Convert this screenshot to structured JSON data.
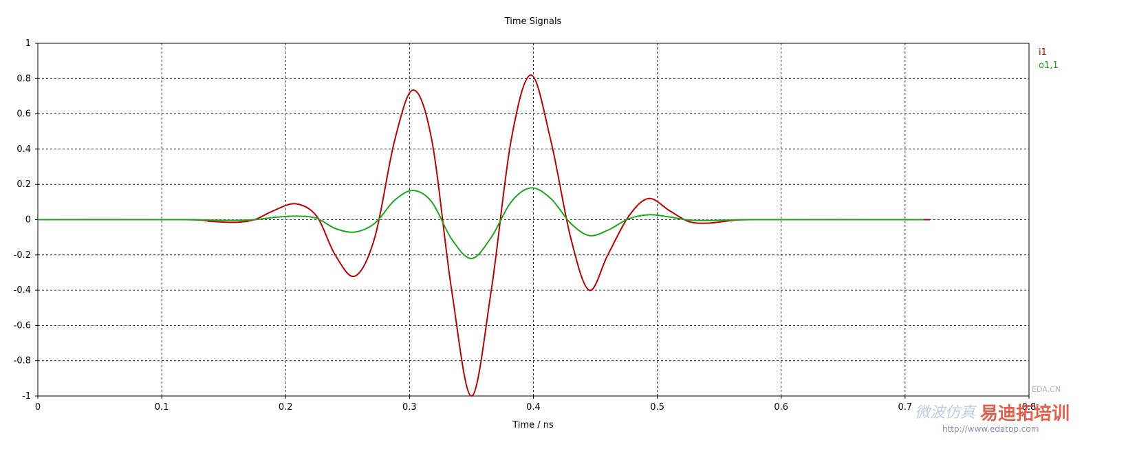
{
  "chart_data": {
    "type": "line",
    "title": "Time Signals",
    "xlabel": "Time / ns",
    "ylabel": "",
    "xlim": [
      0,
      0.8
    ],
    "ylim": [
      -1,
      1
    ],
    "x_ticks": [
      "0",
      "0.1",
      "0.2",
      "0.3",
      "0.4",
      "0.5",
      "0.6",
      "0.7",
      "0.8"
    ],
    "y_ticks": [
      "1",
      "0.8",
      "0.6",
      "0.4",
      "0.2",
      "0",
      "-0.2",
      "-0.4",
      "-0.6",
      "-0.8",
      "-1"
    ],
    "grid": true,
    "legend_position": "top-right",
    "series": [
      {
        "name": "i1",
        "color": "#c00000",
        "x": [
          0,
          0.12,
          0.14,
          0.16,
          0.175,
          0.19,
          0.208,
          0.225,
          0.24,
          0.256,
          0.272,
          0.288,
          0.303,
          0.318,
          0.334,
          0.35,
          0.366,
          0.382,
          0.398,
          0.414,
          0.43,
          0.445,
          0.46,
          0.477,
          0.493,
          0.51,
          0.525,
          0.54,
          0.56,
          0.575,
          0.72
        ],
        "y": [
          0,
          0,
          -0.01,
          -0.015,
          0,
          0.05,
          0.09,
          0.02,
          -0.2,
          -0.32,
          -0.1,
          0.45,
          0.735,
          0.45,
          -0.4,
          -1.0,
          -0.4,
          0.45,
          0.82,
          0.45,
          -0.1,
          -0.4,
          -0.2,
          0.02,
          0.12,
          0.05,
          -0.01,
          -0.02,
          -0.005,
          0,
          0
        ]
      },
      {
        "name": "o1,1",
        "color": "#1aa81a",
        "x": [
          0,
          0.12,
          0.14,
          0.16,
          0.175,
          0.19,
          0.208,
          0.225,
          0.24,
          0.256,
          0.272,
          0.288,
          0.303,
          0.318,
          0.334,
          0.35,
          0.366,
          0.382,
          0.398,
          0.414,
          0.43,
          0.445,
          0.46,
          0.477,
          0.493,
          0.51,
          0.525,
          0.54,
          0.56,
          0.575,
          0.715
        ],
        "y": [
          0,
          0,
          -0.003,
          -0.004,
          0,
          0.012,
          0.02,
          0.008,
          -0.05,
          -0.07,
          -0.02,
          0.11,
          0.165,
          0.1,
          -0.11,
          -0.22,
          -0.1,
          0.1,
          0.18,
          0.12,
          -0.02,
          -0.09,
          -0.06,
          0.005,
          0.028,
          0.015,
          -0.002,
          -0.005,
          -0.002,
          0,
          0
        ]
      }
    ]
  },
  "watermark": {
    "left_text": "微波仿真",
    "right_text": "易迪拓培训",
    "top_text": "EDA.CN",
    "url_text": "http://www.edatop.com"
  }
}
